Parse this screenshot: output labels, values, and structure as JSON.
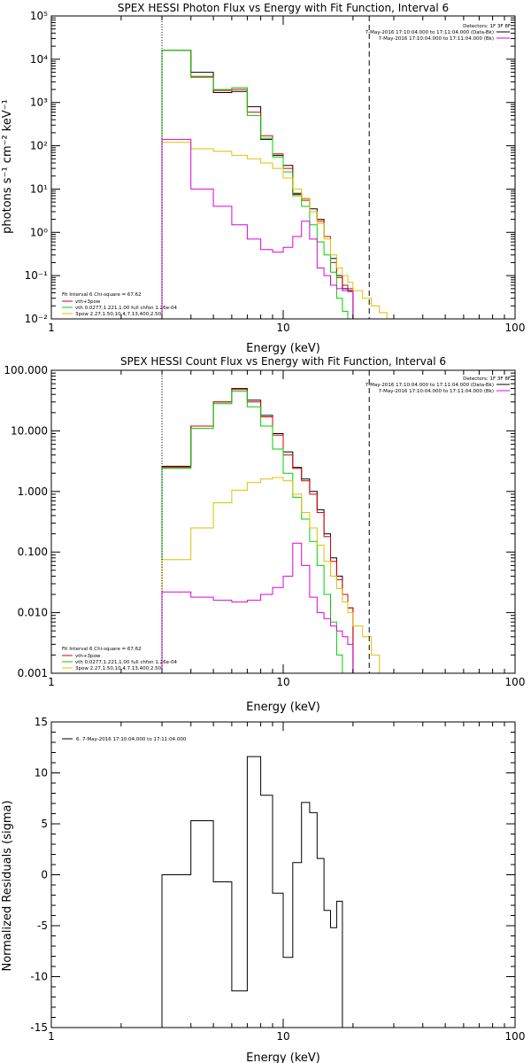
{
  "colors": {
    "black": "#000000",
    "red": "#e00000",
    "green": "#00d000",
    "yellow": "#e0c000",
    "magenta": "#e000e0"
  },
  "chart_data": [
    {
      "type": "line",
      "title": "SPEX HESSI Photon Flux vs Energy with Fit Function, Interval 6",
      "xlabel": "Energy (keV)",
      "ylabel": "photons s⁻¹ cm⁻² keV⁻¹",
      "xscale": "log",
      "yscale": "log",
      "xlim": [
        1,
        100
      ],
      "ylim": [
        0.01,
        100000
      ],
      "xticks": [
        "1",
        "10",
        "100"
      ],
      "yticks": [
        "10⁻²",
        "10⁻¹",
        "10⁰",
        "10¹",
        "10²",
        "10³",
        "10⁴",
        "10⁵"
      ],
      "bin_edges": [
        3,
        4,
        5,
        6,
        7,
        8,
        9,
        10,
        11,
        12,
        13,
        14,
        15,
        16,
        17,
        18,
        19,
        20,
        22,
        24,
        26,
        28,
        30
      ],
      "vlines": [
        {
          "x": 3,
          "style": "dotted"
        },
        {
          "x": 23.5,
          "style": "dashed"
        }
      ],
      "series": [
        {
          "name": "",
          "color": "black",
          "values": [
            16000,
            5000,
            1700,
            1800,
            800,
            140,
            60,
            35,
            8,
            6,
            3.5,
            2,
            0.8,
            0.25,
            0.1,
            0.05,
            0.045,
            null,
            null,
            null,
            null,
            null
          ]
        },
        {
          "name": "vth+3pow",
          "color": "red",
          "values": [
            16000,
            4000,
            1900,
            2000,
            600,
            170,
            65,
            30,
            7.5,
            5.5,
            3,
            1.8,
            0.8,
            0.2,
            0.09,
            0.06,
            0.05,
            null,
            null,
            null,
            null,
            null
          ]
        },
        {
          "name": "vth 0.0277,1.221,1.00  full chfon 1.26e-04",
          "color": "green",
          "values": [
            16000,
            3800,
            2000,
            2200,
            500,
            150,
            55,
            25,
            7,
            4,
            1.5,
            0.6,
            0.3,
            0.12,
            0.03,
            0.015,
            null,
            null,
            null,
            null,
            null,
            null
          ]
        },
        {
          "name": "3pow  2.27,1.50,10.4,7.13,400,2.50",
          "color": "yellow",
          "values": [
            120,
            85,
            75,
            60,
            50,
            40,
            30,
            18,
            10,
            6,
            3,
            1.6,
            0.7,
            0.3,
            0.15,
            0.1,
            0.07,
            0.045,
            0.03,
            0.02,
            0.014,
            null
          ]
        },
        {
          "name": "",
          "color": "magenta",
          "values": [
            140,
            10,
            4,
            1.5,
            0.7,
            0.4,
            0.35,
            0.45,
            0.8,
            1.8,
            0.7,
            0.15,
            0.1,
            0.06,
            0.05,
            0.045,
            0.043,
            null,
            null,
            null,
            null,
            null
          ]
        }
      ],
      "legend_top": {
        "detectors": "Detectors: 1F 3F 8F",
        "entries": [
          {
            "text": "7-May-2016 17:10:04.000 to 17:11:04.000 (Data-Bk)",
            "color": "black"
          },
          {
            "text": "7-May-2016 17:10:04.000 to 17:11:04.000 (Bk)",
            "color": "magenta"
          }
        ]
      },
      "legend_bottom": {
        "header": "Fit Interval 6   Chi-square = 67.62",
        "entries": [
          {
            "text": "vth+3pow",
            "color": "red"
          },
          {
            "text": "vth 0.0277,1.221,1.00  full chfon 1.26e-04",
            "color": "green"
          },
          {
            "text": "3pow  2.27,1.50,10.4,7.13,400,2.50",
            "color": "yellow"
          }
        ]
      }
    },
    {
      "type": "line",
      "title": "SPEX HESSI Count Flux vs Energy with Fit Function, Interval 6",
      "xlabel": "Energy (keV)",
      "ylabel": "",
      "xscale": "log",
      "yscale": "log",
      "xlim": [
        1,
        100
      ],
      "ylim": [
        0.001,
        100
      ],
      "xticks": [
        "1",
        "10",
        "100"
      ],
      "yticks": [
        "0.001",
        "0.010",
        "0.100",
        "1.000",
        "10.000",
        "100.000"
      ],
      "bin_edges": [
        3,
        4,
        5,
        6,
        7,
        8,
        9,
        10,
        11,
        12,
        13,
        14,
        15,
        16,
        17,
        18,
        19,
        20,
        22,
        24,
        26,
        28,
        30
      ],
      "vlines": [
        {
          "x": 3,
          "style": "dotted"
        },
        {
          "x": 23.5,
          "style": "dashed"
        }
      ],
      "series": [
        {
          "name": "",
          "color": "black",
          "values": [
            2.6,
            12,
            30,
            50,
            32,
            18,
            9,
            4.5,
            2.5,
            1.6,
            1.0,
            0.5,
            0.2,
            0.08,
            0.04,
            0.02,
            0.012,
            null,
            null,
            null,
            null,
            null
          ]
        },
        {
          "name": "vth+3pow",
          "color": "red",
          "values": [
            2.5,
            12,
            30,
            48,
            30,
            17,
            8.5,
            4,
            2.4,
            1.5,
            0.9,
            0.45,
            0.18,
            0.07,
            0.035,
            0.02,
            0.012,
            null,
            null,
            null,
            null,
            null
          ]
        },
        {
          "name": "vth 0.0277,1.221,1.00  full chfon 1.26e-04",
          "color": "green",
          "values": [
            2.4,
            11,
            28,
            45,
            25,
            12,
            5,
            2,
            0.8,
            0.35,
            0.15,
            0.06,
            0.02,
            0.007,
            0.002,
            0.001,
            null,
            null,
            null,
            null,
            null,
            null
          ]
        },
        {
          "name": "3pow  2.27,1.50,10.4,7.13,400,2.50",
          "color": "yellow",
          "values": [
            0.075,
            0.25,
            0.65,
            1.05,
            1.4,
            1.6,
            1.7,
            1.5,
            0.9,
            0.45,
            0.25,
            0.13,
            0.07,
            0.04,
            0.025,
            0.015,
            0.01,
            0.006,
            0.004,
            0.002,
            0.001,
            null
          ]
        },
        {
          "name": "",
          "color": "magenta",
          "values": [
            0.022,
            0.018,
            0.016,
            0.015,
            0.016,
            0.02,
            0.026,
            0.04,
            0.14,
            0.06,
            0.018,
            0.01,
            0.008,
            0.006,
            0.005,
            0.004,
            0.003,
            null,
            null,
            null,
            null,
            null
          ]
        }
      ],
      "legend_top": {
        "detectors": "Detectors: 1F 3F 8F",
        "entries": [
          {
            "text": "7-May-2016 17:10:04.000 to 17:11:04.000 (Data-Bk)",
            "color": "black"
          },
          {
            "text": "7-May-2016 17:10:04.000 to 17:11:04.000 (Bk)",
            "color": "magenta"
          }
        ]
      },
      "legend_bottom": {
        "header": "Fit Interval 6   Chi-square = 67.62",
        "entries": [
          {
            "text": "vth+3pow",
            "color": "red"
          },
          {
            "text": "vth 0.0277,1.221,1.00  full chfon 1.26e-04",
            "color": "green"
          },
          {
            "text": "3pow  2.27,1.50,10.4,7.13,400,2.50",
            "color": "yellow"
          }
        ]
      }
    },
    {
      "type": "line",
      "title": "",
      "xlabel": "Energy (keV)",
      "ylabel": "Normalized Residuals (sigma)",
      "xscale": "log",
      "yscale": "linear",
      "xlim": [
        1,
        100
      ],
      "ylim": [
        -15,
        15
      ],
      "xticks": [
        "1",
        "10",
        "100"
      ],
      "yticks": [
        "-15",
        "-10",
        "-5",
        "0",
        "5",
        "10",
        "15"
      ],
      "bin_edges": [
        3,
        4,
        5,
        6,
        7,
        8,
        9,
        10,
        11,
        12,
        13,
        14,
        15,
        16,
        17,
        18,
        19,
        20,
        22,
        24
      ],
      "vlines": [],
      "series": [
        {
          "name": "",
          "color": "black",
          "values": [
            0,
            5.3,
            -0.7,
            -11.4,
            11.6,
            7.8,
            -1.8,
            -8.1,
            1.2,
            7.1,
            6.1,
            1.6,
            -3.5,
            -5.2,
            -2.6,
            null,
            null,
            null,
            null
          ]
        }
      ],
      "legend_top": {
        "detectors": "",
        "entries": [
          {
            "text": "6.  7-May-2016 17:10:04.000 to 17:11:04.000",
            "color": "black"
          }
        ]
      },
      "legend_bottom": {
        "header": "",
        "entries": []
      }
    }
  ]
}
